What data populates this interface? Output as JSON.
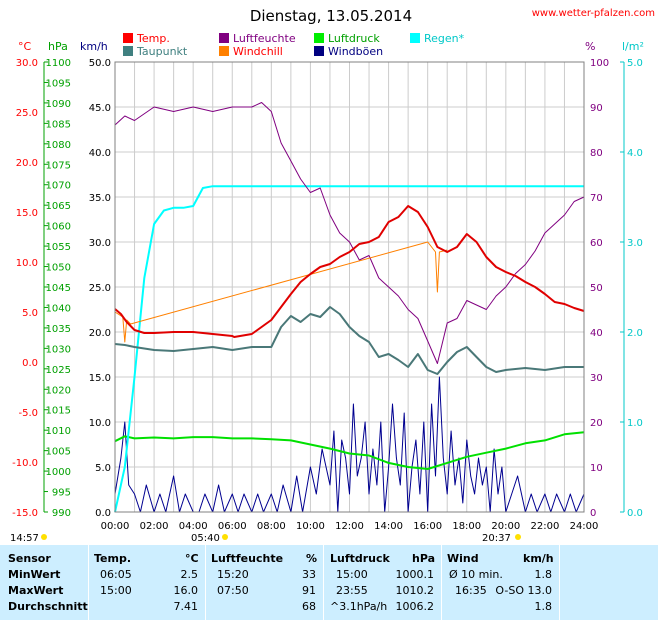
{
  "header": {
    "title": "Dienstag, 13.05.2014",
    "site": "www.wetter-pfalzen.com"
  },
  "axis_units": {
    "temp": "°C",
    "pressure": "hPa",
    "wind": "km/h",
    "humidity": "%",
    "rain": "l/m²"
  },
  "legend": [
    {
      "label": "Temp.",
      "color": "#ff0000"
    },
    {
      "label": "Luftfeuchte",
      "color": "#800080"
    },
    {
      "label": "Luftdruck",
      "color": "#00ee00"
    },
    {
      "label": "Regen*",
      "color": "#00ffff"
    },
    {
      "label": "Taupunkt",
      "color": "#408080"
    },
    {
      "label": "Windchill",
      "color": "#ff8000"
    },
    {
      "label": "Windböen",
      "color": "#000080"
    }
  ],
  "sun": {
    "sunrise": "05:40",
    "sunset": "20:37",
    "left_time": "14:57"
  },
  "colors": {
    "temp": "#e00000",
    "dew": "#4a7878",
    "humidity": "#800080",
    "pressure": "#00e000",
    "rain": "#00ffff",
    "wind": "#000090",
    "windchill": "#ff8000",
    "grid": "#cccccc",
    "temp_axis": "#ff0000",
    "pressure_axis": "#00a000",
    "humidity_axis": "#800080",
    "rain_axis": "#00c8c8",
    "stats_bg": "#cdeeff"
  },
  "chart_data": {
    "type": "line",
    "x_ticks": [
      "00:00",
      "02:00",
      "04:00",
      "06:00",
      "08:00",
      "10:00",
      "12:00",
      "14:00",
      "16:00",
      "18:00",
      "20:00",
      "22:00",
      "24:00"
    ],
    "axes": {
      "temp": {
        "min": -15,
        "max": 30,
        "ticks": [
          "30.0",
          "25.0",
          "20.0",
          "15.0",
          "10.0",
          "5.0",
          "0.0",
          "-5.0",
          "-10.0",
          "-15.0"
        ]
      },
      "pressure": {
        "min": 990,
        "max": 1100,
        "ticks": [
          "1100",
          "1095",
          "1090",
          "1085",
          "1080",
          "1075",
          "1070",
          "1065",
          "1060",
          "1055",
          "1050",
          "1045",
          "1040",
          "1035",
          "1030",
          "1025",
          "1020",
          "1015",
          "1010",
          "1005",
          "1000",
          "995",
          "990"
        ]
      },
      "wind": {
        "min": 0,
        "max": 50,
        "ticks": [
          "50.0",
          "45.0",
          "40.0",
          "35.0",
          "30.0",
          "25.0",
          "20.0",
          "15.0",
          "10.0",
          "5.0",
          "0.0"
        ]
      },
      "humidity": {
        "min": 0,
        "max": 100,
        "ticks": [
          "100",
          "90",
          "80",
          "70",
          "60",
          "50",
          "40",
          "30",
          "20",
          "10",
          "0"
        ]
      },
      "rain": {
        "min": 0,
        "max": 5,
        "ticks": [
          "5.0",
          "4.0",
          "3.0",
          "2.0",
          "1.0",
          "0.0"
        ]
      }
    },
    "series": [
      {
        "name": "Temp.",
        "axis": "temp",
        "x": [
          0,
          0.3,
          0.6,
          1.0,
          1.5,
          2.0,
          3.0,
          4.0,
          5.0,
          6.0,
          6.1,
          7.0,
          8.0,
          8.5,
          9.0,
          9.5,
          10.0,
          10.5,
          11.0,
          11.5,
          12.0,
          12.5,
          13.0,
          13.5,
          14.0,
          14.5,
          15.0,
          15.5,
          16.0,
          16.5,
          17.0,
          17.5,
          18.0,
          18.5,
          19.0,
          19.5,
          20.0,
          20.5,
          21.0,
          21.5,
          22.0,
          22.5,
          23.0,
          23.5,
          24.0
        ],
        "y": [
          5.3,
          4.8,
          4.0,
          3.2,
          2.9,
          2.9,
          3.0,
          3.0,
          2.8,
          2.6,
          2.5,
          2.8,
          4.2,
          5.5,
          6.8,
          8.0,
          8.8,
          9.5,
          9.8,
          10.5,
          11.0,
          11.8,
          12.0,
          12.5,
          14.0,
          14.5,
          15.6,
          15.0,
          13.5,
          11.5,
          11.0,
          11.5,
          12.8,
          12.0,
          10.5,
          9.5,
          9.0,
          8.6,
          8.0,
          7.5,
          6.8,
          6.0,
          5.8,
          5.4,
          5.1
        ]
      },
      {
        "name": "Taupunkt",
        "axis": "temp",
        "x": [
          0,
          0.5,
          1.0,
          2.0,
          3.0,
          4.0,
          5.0,
          6.0,
          7.0,
          8.0,
          8.5,
          9.0,
          9.5,
          10.0,
          10.5,
          11.0,
          11.5,
          12.0,
          12.5,
          13.0,
          13.5,
          14.0,
          14.5,
          15.0,
          15.5,
          16.0,
          16.5,
          17.0,
          17.5,
          18.0,
          18.5,
          19.0,
          19.5,
          20.0,
          21.0,
          22.0,
          23.0,
          24.0
        ],
        "y": [
          1.8,
          1.7,
          1.5,
          1.2,
          1.1,
          1.3,
          1.5,
          1.2,
          1.5,
          1.5,
          3.5,
          4.6,
          4.0,
          4.8,
          4.5,
          5.5,
          4.8,
          3.5,
          2.6,
          2.0,
          0.5,
          0.8,
          0.2,
          -0.5,
          0.8,
          -0.8,
          -1.2,
          0.0,
          1.0,
          1.5,
          0.5,
          -0.5,
          -1.0,
          -0.8,
          -0.6,
          -0.8,
          -0.5,
          -0.5
        ]
      },
      {
        "name": "Luftfeuchte",
        "axis": "humidity",
        "x": [
          0,
          0.5,
          1.0,
          2.0,
          3.0,
          4.0,
          5.0,
          6.0,
          7.0,
          7.5,
          8.0,
          8.5,
          9.0,
          9.5,
          10.0,
          10.5,
          11.0,
          11.5,
          12.0,
          12.5,
          13.0,
          13.5,
          14.0,
          14.5,
          15.0,
          15.5,
          16.0,
          16.5,
          17.0,
          17.5,
          18.0,
          18.5,
          19.0,
          19.5,
          20.0,
          20.5,
          21.0,
          21.5,
          22.0,
          22.5,
          23.0,
          23.5,
          24.0
        ],
        "y": [
          86,
          88,
          87,
          90,
          89,
          90,
          89,
          90,
          90,
          91,
          89,
          82,
          78,
          74,
          71,
          72,
          66,
          62,
          60,
          56,
          57,
          52,
          50,
          48,
          45,
          43,
          38,
          33,
          42,
          43,
          47,
          46,
          45,
          48,
          50,
          53,
          55,
          58,
          62,
          64,
          66,
          69,
          70
        ]
      },
      {
        "name": "Luftdruck",
        "axis": "pressure",
        "x": [
          0,
          0.5,
          1.0,
          2.0,
          3.0,
          4.0,
          5.0,
          6.0,
          7.0,
          8.0,
          9.0,
          10.0,
          11.0,
          12.0,
          13.0,
          14.0,
          15.0,
          16.0,
          17.0,
          18.0,
          19.0,
          20.0,
          21.0,
          22.0,
          23.0,
          24.0
        ],
        "y": [
          1007.3,
          1008.5,
          1008.0,
          1008.2,
          1008.0,
          1008.3,
          1008.3,
          1008.0,
          1008.0,
          1007.8,
          1007.5,
          1006.5,
          1005.5,
          1004.3,
          1003.8,
          1002.0,
          1001.0,
          1000.5,
          1002.0,
          1003.5,
          1004.5,
          1005.5,
          1006.8,
          1007.5,
          1009.0,
          1009.5
        ]
      },
      {
        "name": "Regen*",
        "axis": "rain",
        "x": [
          0,
          0.5,
          1.0,
          1.5,
          2.0,
          2.5,
          3.0,
          3.5,
          4.0,
          4.5,
          5.0,
          6.0,
          8.0,
          10.0,
          12.0,
          14.0,
          16.0,
          18.0,
          20.0,
          22.0,
          24.0
        ],
        "y": [
          0,
          0.5,
          1.5,
          2.6,
          3.2,
          3.35,
          3.38,
          3.38,
          3.4,
          3.6,
          3.62,
          3.62,
          3.62,
          3.62,
          3.62,
          3.62,
          3.62,
          3.62,
          3.62,
          3.62,
          3.62
        ]
      },
      {
        "name": "Windchill",
        "axis": "temp",
        "x": [
          0,
          0.4,
          0.5,
          0.6,
          0.8,
          16.0,
          16.4,
          16.5,
          16.6,
          17.0
        ],
        "y": [
          5.0,
          4.5,
          2.0,
          4.2,
          3.8,
          12.0,
          11.0,
          7.0,
          11.0,
          11.2
        ]
      },
      {
        "name": "Windböen",
        "axis": "wind",
        "x": [
          0,
          0.3,
          0.5,
          0.7,
          1.0,
          1.3,
          1.6,
          2.0,
          2.3,
          2.6,
          3.0,
          3.3,
          3.6,
          4.0,
          4.3,
          4.6,
          5.0,
          5.3,
          5.6,
          6.0,
          6.3,
          6.6,
          7.0,
          7.3,
          7.6,
          8.0,
          8.3,
          8.6,
          9.0,
          9.3,
          9.6,
          10.0,
          10.3,
          10.6,
          11.0,
          11.2,
          11.4,
          11.6,
          11.8,
          12.0,
          12.2,
          12.4,
          12.6,
          12.8,
          13.0,
          13.2,
          13.4,
          13.6,
          13.8,
          14.0,
          14.2,
          14.4,
          14.6,
          14.8,
          15.0,
          15.2,
          15.4,
          15.6,
          15.8,
          16.0,
          16.2,
          16.4,
          16.6,
          16.8,
          17.0,
          17.2,
          17.4,
          17.6,
          17.8,
          18.0,
          18.2,
          18.4,
          18.6,
          18.8,
          19.0,
          19.2,
          19.4,
          19.6,
          19.8,
          20.0,
          20.3,
          20.6,
          21.0,
          21.3,
          21.6,
          22.0,
          22.3,
          22.6,
          23.0,
          23.3,
          23.6,
          24.0
        ],
        "y": [
          2,
          6,
          10,
          3,
          2,
          0,
          3,
          0,
          2,
          0,
          4,
          0,
          2,
          0,
          0,
          2,
          0,
          3,
          0,
          2,
          0,
          2,
          0,
          2,
          0,
          2,
          0,
          3,
          0,
          4,
          0,
          5,
          2,
          7,
          3,
          9,
          0,
          8,
          6,
          2,
          12,
          4,
          6,
          10,
          2,
          7,
          3,
          10,
          0,
          5,
          12,
          6,
          3,
          11,
          0,
          5,
          8,
          2,
          10,
          0,
          12,
          4,
          15,
          6,
          2,
          9,
          3,
          6,
          1,
          8,
          4,
          2,
          6,
          3,
          5,
          0,
          7,
          2,
          5,
          0,
          2,
          4,
          0,
          2,
          0,
          2,
          0,
          2,
          0,
          2,
          0,
          2
        ]
      }
    ]
  },
  "stats": {
    "headers": {
      "sensor": "Sensor",
      "temp": "Temp.",
      "temp_unit": "°C",
      "hum": "Luftfeuchte",
      "hum_unit": "%",
      "press": "Luftdruck",
      "press_unit": "hPa",
      "wind": "Wind",
      "wind_unit": "km/h"
    },
    "rows": [
      {
        "label": "MinWert",
        "temp_time": "06:05",
        "temp_val": "2.5",
        "hum_time": "15:20",
        "hum_val": "33",
        "press_time": "15:00",
        "press_val": "1000.1",
        "wind_time": "Ø 10 min.",
        "wind_val": "1.8"
      },
      {
        "label": "MaxWert",
        "temp_time": "15:00",
        "temp_val": "16.0",
        "hum_time": "07:50",
        "hum_val": "91",
        "press_time": "23:55",
        "press_val": "1010.2",
        "wind_time": "16:35",
        "wind_val": "O-SO 13.0"
      },
      {
        "label": "Durchschnitt",
        "temp_time": "",
        "temp_val": "7.41",
        "hum_time": "",
        "hum_val": "68",
        "press_time": "^3.1hPa/h",
        "press_val": "1006.2",
        "wind_time": "",
        "wind_val": "1.8"
      }
    ]
  }
}
